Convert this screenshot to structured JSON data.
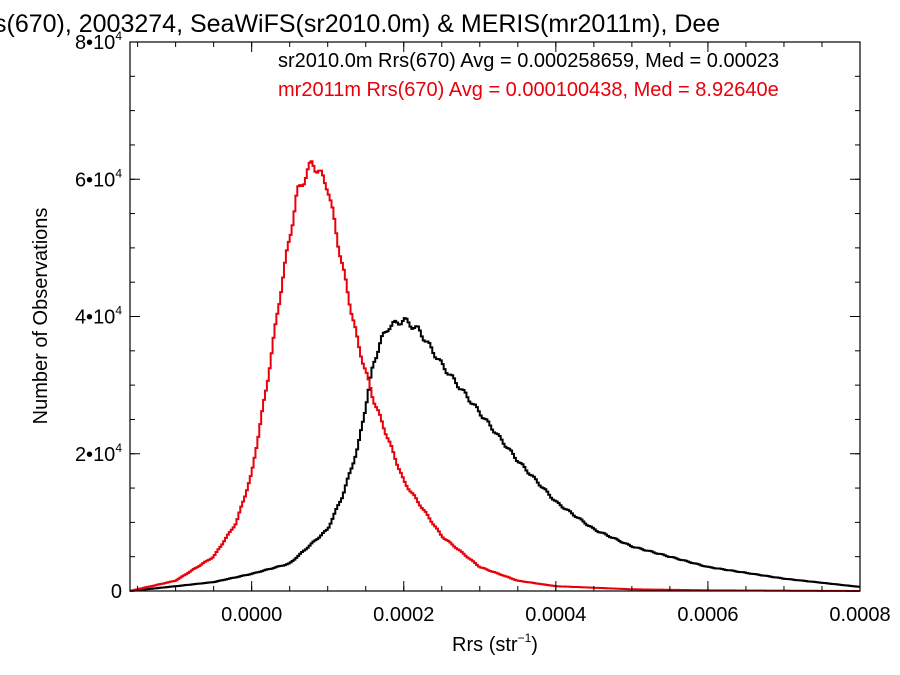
{
  "chart_data": {
    "type": "line",
    "title": "s(670), 2003274, SeaWiFS(sr2010.0m) & MERIS(mr2011m), Dee",
    "xlabel": "Rrs (str",
    "xlabel_sup": "−1",
    "xlabel_close": ")",
    "ylabel": "Number of Observations",
    "xlim": [
      -0.00016,
      0.0008
    ],
    "ylim": [
      0,
      80000
    ],
    "x_ticks": [
      {
        "value": 0.0,
        "label": "0.0000"
      },
      {
        "value": 0.0002,
        "label": "0.0002"
      },
      {
        "value": 0.0004,
        "label": "0.0004"
      },
      {
        "value": 0.0006,
        "label": "0.0006"
      },
      {
        "value": 0.0008,
        "label": "0.0008"
      }
    ],
    "y_ticks": [
      {
        "value": 0,
        "label": "0",
        "exp": ""
      },
      {
        "value": 20000,
        "label": "2•10",
        "exp": "4"
      },
      {
        "value": 40000,
        "label": "4•10",
        "exp": "4"
      },
      {
        "value": 60000,
        "label": "6•10",
        "exp": "4"
      },
      {
        "value": 80000,
        "label": "8•10",
        "exp": "4"
      }
    ],
    "x_minor_step": 5e-05,
    "y_minor_step": 5000,
    "grid": false,
    "annotations": [
      {
        "text": "sr2010.0m Rrs(670) Avg = 0.000258659, Med = 0.00023",
        "color": "#000000"
      },
      {
        "text": "mr2011m Rrs(670) Avg = 0.000100438, Med = 8.92640e",
        "color": "#e8000b"
      }
    ],
    "series": [
      {
        "color": "#000000",
        "x": [
          -0.00016,
          -0.0001,
          -5e-05,
          0.0,
          5e-05,
          0.0001,
          0.00012,
          0.00014,
          0.00015,
          0.00016,
          0.00017,
          0.00018,
          0.0002,
          0.00022,
          0.00025,
          0.0003,
          0.00035,
          0.0004,
          0.00045,
          0.0005,
          0.0006,
          0.0007,
          0.0008
        ],
        "y": [
          0,
          700,
          1300,
          2500,
          4000,
          9000,
          14000,
          21000,
          27000,
          33000,
          36500,
          38500,
          39500,
          38000,
          33000,
          26000,
          19000,
          13000,
          9000,
          6500,
          3500,
          1800,
          600
        ]
      },
      {
        "color": "#e8000b",
        "x": [
          -0.00016,
          -0.0001,
          -5e-05,
          -2e-05,
          0.0,
          2e-05,
          4e-05,
          6e-05,
          8e-05,
          0.0001,
          0.00012,
          0.00014,
          0.00016,
          0.0002,
          0.00025,
          0.0003,
          0.00035,
          0.0004,
          0.0005,
          0.0006,
          0.0008
        ],
        "y": [
          0,
          1500,
          5000,
          10000,
          17000,
          30000,
          45000,
          58000,
          62500,
          59000,
          47000,
          36000,
          28000,
          16000,
          8000,
          3500,
          1500,
          700,
          250,
          100,
          0
        ]
      }
    ]
  }
}
